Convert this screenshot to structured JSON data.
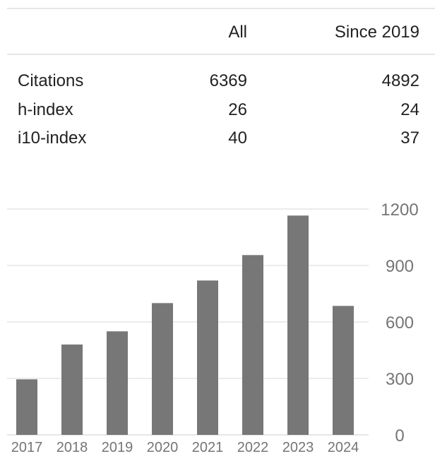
{
  "table": {
    "headers": [
      "All",
      "Since 2019"
    ],
    "rows": [
      {
        "label": "Citations",
        "all": "6369",
        "since": "4892"
      },
      {
        "label": "h-index",
        "all": "26",
        "since": "24"
      },
      {
        "label": "i10-index",
        "all": "40",
        "since": "37"
      }
    ]
  },
  "chart_data": {
    "type": "bar",
    "categories": [
      "2017",
      "2018",
      "2019",
      "2020",
      "2021",
      "2022",
      "2023",
      "2024"
    ],
    "values": [
      295,
      480,
      550,
      700,
      820,
      955,
      1165,
      685
    ],
    "ylim": [
      0,
      1200
    ],
    "yticks": [
      0,
      300,
      600,
      900,
      1200
    ],
    "ytick_labels": [
      "0",
      "300",
      "600",
      "900",
      "1200"
    ],
    "grid": true,
    "y_axis_side": "right",
    "bar_color": "#777777",
    "grid_color": "#e6e6e6"
  }
}
